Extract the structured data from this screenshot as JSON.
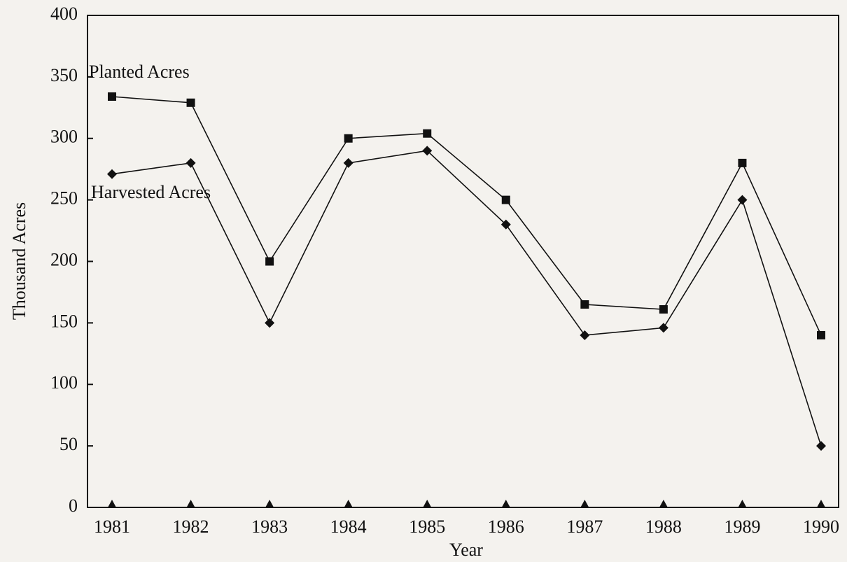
{
  "chart_data": {
    "type": "line",
    "x_label": "Year",
    "y_label": "Thousand Acres",
    "categories": [
      "1981",
      "1982",
      "1983",
      "1984",
      "1985",
      "1986",
      "1987",
      "1988",
      "1989",
      "1990"
    ],
    "series": [
      {
        "name": "Planted Acres",
        "color": "#111111",
        "marker": "square",
        "values": [
          334,
          329,
          200,
          300,
          304,
          250,
          165,
          161,
          280,
          140
        ]
      },
      {
        "name": "Harvested Acres",
        "color": "#111111",
        "marker": "diamond",
        "values": [
          271,
          280,
          150,
          280,
          290,
          230,
          140,
          146,
          250,
          50
        ]
      }
    ],
    "ylim": [
      0,
      400
    ],
    "yticks": [
      0,
      50,
      100,
      150,
      200,
      250,
      300,
      350,
      400
    ],
    "grid": false
  }
}
